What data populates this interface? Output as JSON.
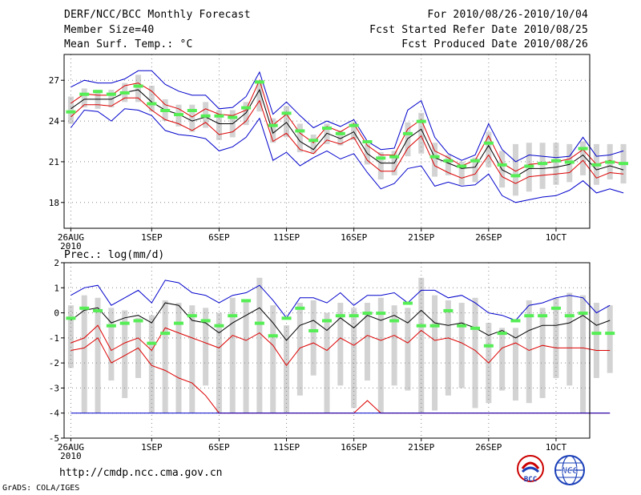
{
  "header": {
    "title": "DERF/NCC/BCC Monthly Forecast",
    "member_size": "Member Size=40",
    "variable": "Mean Surf. Temp.: °C",
    "period": "For 2010/08/26-2010/10/04",
    "started": "Fcst Started Refer Date 2010/08/25",
    "produced": "Fcst Produced Date 2010/08/26"
  },
  "footer": {
    "url": "http://cmdp.ncc.cma.gov.cn",
    "grads": "GrADS: COLA/IGES",
    "logo1_text": "BCC",
    "logo2_text": "NCC"
  },
  "colors": {
    "envelope": "#0000cc",
    "median": "#000000",
    "lower_pct": "#dd0000",
    "upper_pct": "#dd0000",
    "box": "#d3d3d3",
    "mean_marker": "#55ee55",
    "grid": "#888888"
  },
  "chart_data": [
    {
      "type": "line",
      "title": "Mean Surf. Temp.: °C",
      "x_ticks": [
        {
          "day": 0,
          "label": "26AUG",
          "sub": "2010"
        },
        {
          "day": 6,
          "label": "1SEP"
        },
        {
          "day": 11,
          "label": "6SEP"
        },
        {
          "day": 16,
          "label": "11SEP"
        },
        {
          "day": 21,
          "label": "16SEP"
        },
        {
          "day": 26,
          "label": "21SEP"
        },
        {
          "day": 31,
          "label": "26SEP"
        },
        {
          "day": 36,
          "label": "1OCT"
        }
      ],
      "y_ticks": [
        18,
        21,
        24,
        27
      ],
      "ylim": [
        16.1,
        28.9
      ],
      "xlim": [
        -0.5,
        38.5
      ],
      "series": [
        {
          "name": "max",
          "color": "#0000cc",
          "values": [
            26.5,
            27.0,
            26.8,
            26.8,
            27.1,
            27.7,
            27.7,
            26.7,
            26.2,
            25.9,
            25.9,
            24.9,
            25.0,
            25.8,
            27.6,
            24.5,
            25.4,
            24.4,
            23.5,
            24.0,
            23.6,
            24.1,
            22.5,
            21.9,
            22.0,
            24.8,
            25.5,
            22.8,
            21.6,
            21.1,
            21.5,
            23.8,
            21.9,
            21.0,
            21.5,
            21.4,
            21.3,
            21.4,
            22.8,
            21.4,
            21.5,
            21.8
          ]
        },
        {
          "name": "p80",
          "color": "#dd0000",
          "values": [
            25.3,
            26.0,
            25.9,
            25.9,
            26.6,
            26.8,
            26.2,
            25.2,
            24.9,
            24.3,
            24.9,
            24.5,
            24.4,
            24.8,
            27.0,
            23.7,
            24.5,
            23.1,
            22.4,
            23.6,
            23.2,
            23.8,
            22.2,
            21.5,
            21.5,
            23.4,
            24.1,
            21.8,
            21.3,
            20.7,
            21.1,
            22.9,
            20.9,
            20.3,
            20.8,
            20.9,
            21.0,
            21.2,
            21.9,
            20.8,
            21.1,
            20.8
          ]
        },
        {
          "name": "p50",
          "color": "#000000",
          "values": [
            24.9,
            25.6,
            25.6,
            25.6,
            26.1,
            26.3,
            25.4,
            24.8,
            24.5,
            24.0,
            24.3,
            23.8,
            23.8,
            24.6,
            26.3,
            23.1,
            23.9,
            22.5,
            21.9,
            23.1,
            22.7,
            23.2,
            21.6,
            20.9,
            20.9,
            22.7,
            23.4,
            21.3,
            20.9,
            20.5,
            20.6,
            22.2,
            20.4,
            19.9,
            20.5,
            20.5,
            20.6,
            20.8,
            21.5,
            20.4,
            20.7,
            20.4
          ]
        },
        {
          "name": "p20",
          "color": "#dd0000",
          "values": [
            24.3,
            25.2,
            25.2,
            25.1,
            25.7,
            25.7,
            24.8,
            24.1,
            23.8,
            23.3,
            23.9,
            23.0,
            23.2,
            24.0,
            25.5,
            22.5,
            23.1,
            21.9,
            21.6,
            22.6,
            22.3,
            22.8,
            21.1,
            20.3,
            20.3,
            22.0,
            22.9,
            20.7,
            20.2,
            19.8,
            20.1,
            21.5,
            19.9,
            19.4,
            19.9,
            20.0,
            20.1,
            20.2,
            21.1,
            19.8,
            20.2,
            20.1
          ]
        },
        {
          "name": "min",
          "color": "#0000cc",
          "values": [
            23.5,
            24.8,
            24.7,
            24.0,
            24.9,
            24.8,
            24.4,
            23.3,
            23.0,
            22.9,
            22.7,
            21.8,
            22.1,
            22.8,
            24.2,
            21.1,
            21.7,
            20.7,
            21.3,
            21.8,
            21.2,
            21.6,
            20.2,
            19.0,
            19.4,
            20.5,
            20.7,
            19.2,
            19.5,
            19.2,
            19.3,
            20.1,
            18.5,
            18.0,
            18.2,
            18.4,
            18.5,
            18.9,
            19.6,
            18.7,
            19.0,
            18.7
          ]
        }
      ],
      "boxes": {
        "lower": [
          23.8,
          25.0,
          24.9,
          25.0,
          25.4,
          25.4,
          24.7,
          24.0,
          23.6,
          23.2,
          23.5,
          22.6,
          22.8,
          23.7,
          24.7,
          22.4,
          22.8,
          21.7,
          21.6,
          22.3,
          22.2,
          22.6,
          20.8,
          19.7,
          20.0,
          21.4,
          21.6,
          19.9,
          20.0,
          19.3,
          19.5,
          20.6,
          19.1,
          18.5,
          18.8,
          19.0,
          19.3,
          19.5,
          20.0,
          19.3,
          19.7,
          19.4
        ],
        "upper": [
          25.8,
          26.4,
          26.3,
          26.3,
          26.8,
          27.4,
          26.6,
          25.6,
          25.2,
          25.2,
          25.4,
          24.8,
          24.8,
          25.4,
          26.9,
          24.2,
          25.1,
          23.8,
          23.0,
          23.8,
          23.3,
          23.9,
          22.3,
          21.7,
          21.8,
          23.9,
          24.6,
          22.4,
          21.5,
          21.0,
          21.3,
          23.2,
          21.8,
          22.3,
          22.4,
          22.4,
          22.4,
          22.3,
          22.5,
          22.3,
          22.3,
          22.3
        ]
      },
      "mean": [
        24.7,
        26.0,
        26.2,
        26.0,
        26.1,
        26.6,
        25.3,
        24.8,
        24.5,
        24.8,
        24.4,
        24.4,
        24.3,
        25.0,
        26.9,
        23.7,
        24.6,
        23.3,
        22.6,
        23.5,
        23.1,
        23.7,
        22.5,
        21.3,
        21.4,
        23.1,
        24.0,
        21.4,
        21.1,
        20.7,
        21.1,
        22.4,
        20.8,
        20.0,
        20.7,
        20.9,
        21.1,
        21.0,
        22.0,
        20.8,
        21.0,
        20.9
      ]
    },
    {
      "type": "line",
      "title": "Prec.: log(mm/d)",
      "x_ticks": [
        {
          "day": 0,
          "label": "26AUG",
          "sub": "2010"
        },
        {
          "day": 6,
          "label": "1SEP"
        },
        {
          "day": 11,
          "label": "6SEP"
        },
        {
          "day": 16,
          "label": "11SEP"
        },
        {
          "day": 21,
          "label": "16SEP"
        },
        {
          "day": 26,
          "label": "21SEP"
        },
        {
          "day": 31,
          "label": "26SEP"
        },
        {
          "day": 36,
          "label": "1OCT"
        }
      ],
      "y_ticks": [
        -5,
        -4,
        -3,
        -2,
        -1,
        0,
        1,
        2
      ],
      "ylim": [
        -5,
        2
      ],
      "xlim": [
        -0.5,
        38.5
      ],
      "series": [
        {
          "name": "max",
          "color": "#0000cc",
          "values": [
            0.7,
            1.0,
            1.1,
            0.3,
            0.6,
            0.9,
            0.4,
            1.3,
            1.2,
            0.8,
            0.7,
            0.4,
            0.7,
            0.8,
            1.1,
            0.5,
            -0.2,
            0.6,
            0.6,
            0.4,
            0.8,
            0.3,
            0.7,
            0.7,
            0.8,
            0.4,
            0.9,
            0.9,
            0.6,
            0.7,
            0.4,
            0.0,
            -0.1,
            -0.3,
            0.3,
            0.4,
            0.6,
            0.7,
            0.6,
            0.0,
            0.3
          ]
        },
        {
          "name": "p80",
          "color": "#000000",
          "values": [
            -0.3,
            0.1,
            0.2,
            -0.4,
            -0.2,
            -0.1,
            -0.4,
            0.4,
            0.3,
            -0.3,
            -0.4,
            -0.8,
            -0.4,
            -0.1,
            0.2,
            -0.4,
            -1.1,
            -0.5,
            -0.3,
            -0.7,
            -0.2,
            -0.6,
            -0.1,
            -0.3,
            -0.1,
            -0.4,
            0.1,
            -0.4,
            -0.5,
            -0.4,
            -0.6,
            -0.9,
            -0.7,
            -1.0,
            -0.7,
            -0.5,
            -0.5,
            -0.4,
            -0.1,
            -0.5,
            -0.3
          ]
        },
        {
          "name": "p20",
          "color": "#dd0000",
          "values": [
            -1.2,
            -1.0,
            -0.5,
            -1.5,
            -1.2,
            -1.0,
            -1.5,
            -0.6,
            -0.8,
            -1.0,
            -1.2,
            -1.4,
            -0.9,
            -1.1,
            -0.8,
            -1.3,
            -2.1,
            -1.4,
            -1.2,
            -1.5,
            -1.0,
            -1.3,
            -0.9,
            -1.1,
            -0.9,
            -1.2,
            -0.7,
            -1.1,
            -1.0,
            -1.2,
            -1.5,
            -2.0,
            -1.4,
            -1.2,
            -1.5,
            -1.3,
            -1.4,
            -1.4,
            -1.4,
            -1.5,
            -1.5
          ]
        },
        {
          "name": "p10",
          "color": "#dd0000",
          "values": [
            -1.5,
            -1.4,
            -1.0,
            -2.0,
            -1.7,
            -1.4,
            -2.1,
            -2.3,
            -2.6,
            -2.8,
            -3.3,
            -4.0,
            -4.0,
            -4.0,
            -4.0,
            -4.0,
            -4.0,
            -4.0,
            -4.0,
            -4.0,
            -4.0,
            -4.0,
            -3.5,
            -4.0,
            -4.0,
            -4.0,
            -4.0,
            -4.0,
            -4.0,
            -4.0,
            -4.0,
            -4.0,
            -4.0,
            -4.0,
            -4.0,
            -4.0,
            -4.0,
            -4.0,
            -4.0,
            -4.0,
            -4.0
          ]
        },
        {
          "name": "min",
          "color": "#0000cc",
          "values": [
            -4.0,
            -4.0,
            -4.0,
            -4.0,
            -4.0,
            -4.0,
            -4.0,
            -4.0,
            -4.0,
            -4.0,
            -4.0,
            -4.0,
            -4.0,
            -4.0,
            -4.0,
            -4.0,
            -4.0,
            -4.0,
            -4.0,
            -4.0,
            -4.0,
            -4.0,
            -4.0,
            -4.0,
            -4.0,
            -4.0,
            -4.0,
            -4.0,
            -4.0,
            -4.0,
            -4.0,
            -4.0,
            -4.0,
            -4.0,
            -4.0,
            -4.0,
            -4.0,
            -4.0,
            -4.0,
            -4.0,
            -4.0
          ]
        },
        {
          "name": "p90",
          "color": "#0000cc",
          "values": []
        }
      ],
      "boxes": {
        "lower": [
          -2.2,
          -4.0,
          -4.0,
          -2.7,
          -3.4,
          -2.6,
          -4.0,
          -4.0,
          -4.0,
          -4.0,
          -2.9,
          -4.0,
          -4.0,
          -4.0,
          -4.0,
          -4.0,
          -4.0,
          -3.3,
          -2.5,
          -4.0,
          -2.9,
          -3.8,
          -2.7,
          -4.0,
          -2.9,
          -3.1,
          -4.0,
          -3.9,
          -3.3,
          -3.0,
          -3.8,
          -3.6,
          -3.1,
          -3.5,
          -3.6,
          -3.4,
          -2.6,
          -2.9,
          -4.0,
          -2.6,
          -2.4
        ],
        "upper": [
          0.3,
          0.7,
          0.6,
          0.2,
          0.1,
          -0.2,
          -0.1,
          0.5,
          0.4,
          0.3,
          0.2,
          0.0,
          0.6,
          0.5,
          1.4,
          0.3,
          -0.5,
          0.4,
          0.5,
          0.0,
          0.4,
          0.2,
          0.4,
          0.6,
          0.3,
          0.2,
          1.4,
          0.7,
          0.5,
          0.4,
          0.6,
          -0.4,
          -0.6,
          -0.6,
          0.5,
          0.2,
          0.6,
          0.8,
          0.7,
          0.4,
          0.3
        ]
      },
      "mean": [
        -0.2,
        0.2,
        0.1,
        -0.5,
        -0.4,
        -0.3,
        -1.2,
        -0.8,
        -0.4,
        -0.1,
        -0.3,
        -0.5,
        -0.1,
        0.5,
        -0.4,
        -0.9,
        -0.2,
        0.2,
        -0.7,
        -0.3,
        -0.1,
        -0.1,
        0.0,
        0.0,
        -0.3,
        0.4,
        -0.5,
        -0.5,
        0.1,
        -0.5,
        -0.6,
        -1.3,
        -0.8,
        -0.3,
        -0.1,
        -0.1,
        0.2,
        -0.1,
        0.0,
        -0.8,
        -0.8
      ]
    }
  ]
}
